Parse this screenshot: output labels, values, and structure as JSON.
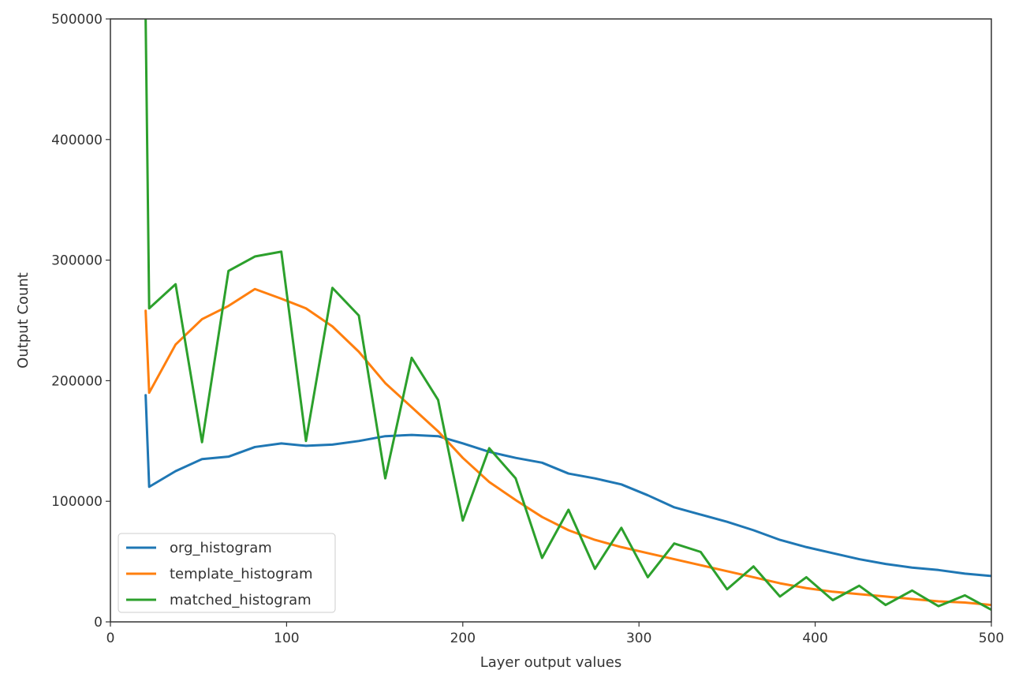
{
  "chart_data": {
    "type": "line",
    "title": "",
    "xlabel": "Layer output values",
    "ylabel": "Output Count",
    "xlim": [
      0,
      500
    ],
    "ylim": [
      0,
      500000
    ],
    "xticks": [
      0,
      100,
      200,
      300,
      400,
      500
    ],
    "yticks": [
      0,
      100000,
      200000,
      300000,
      400000,
      500000
    ],
    "grid": false,
    "legend_position": "lower-left",
    "series": [
      {
        "name": "org_histogram",
        "color": "#1f77b4",
        "points": [
          [
            20,
            188000
          ],
          [
            22,
            112000
          ],
          [
            37,
            125000
          ],
          [
            52,
            135000
          ],
          [
            67,
            137000
          ],
          [
            82,
            145000
          ],
          [
            97,
            148000
          ],
          [
            111,
            146000
          ],
          [
            126,
            147000
          ],
          [
            141,
            150000
          ],
          [
            156,
            154000
          ],
          [
            171,
            155000
          ],
          [
            186,
            154000
          ],
          [
            200,
            148000
          ],
          [
            215,
            141000
          ],
          [
            230,
            136000
          ],
          [
            245,
            132000
          ],
          [
            260,
            123000
          ],
          [
            275,
            119000
          ],
          [
            290,
            114000
          ],
          [
            305,
            105000
          ],
          [
            320,
            95000
          ],
          [
            335,
            89000
          ],
          [
            350,
            83000
          ],
          [
            365,
            76000
          ],
          [
            380,
            68000
          ],
          [
            395,
            62000
          ],
          [
            410,
            57000
          ],
          [
            425,
            52000
          ],
          [
            440,
            48000
          ],
          [
            455,
            45000
          ],
          [
            470,
            43000
          ],
          [
            485,
            40000
          ],
          [
            500,
            38000
          ]
        ]
      },
      {
        "name": "template_histogram",
        "color": "#ff7f0e",
        "points": [
          [
            20,
            258000
          ],
          [
            22,
            190000
          ],
          [
            37,
            230000
          ],
          [
            52,
            251000
          ],
          [
            67,
            262000
          ],
          [
            82,
            276000
          ],
          [
            97,
            268000
          ],
          [
            111,
            260000
          ],
          [
            126,
            245000
          ],
          [
            141,
            224000
          ],
          [
            156,
            198000
          ],
          [
            171,
            178000
          ],
          [
            186,
            158000
          ],
          [
            200,
            136000
          ],
          [
            215,
            116000
          ],
          [
            230,
            101000
          ],
          [
            245,
            87000
          ],
          [
            260,
            76000
          ],
          [
            275,
            68000
          ],
          [
            290,
            62000
          ],
          [
            305,
            57000
          ],
          [
            320,
            52000
          ],
          [
            335,
            47000
          ],
          [
            350,
            42000
          ],
          [
            365,
            37000
          ],
          [
            380,
            32000
          ],
          [
            395,
            28000
          ],
          [
            410,
            25000
          ],
          [
            425,
            23000
          ],
          [
            440,
            21000
          ],
          [
            455,
            19000
          ],
          [
            470,
            17000
          ],
          [
            485,
            16000
          ],
          [
            500,
            14000
          ]
        ]
      },
      {
        "name": "matched_histogram",
        "color": "#2ca02c",
        "points": [
          [
            20,
            500000
          ],
          [
            22,
            260000
          ],
          [
            37,
            280000
          ],
          [
            52,
            149000
          ],
          [
            67,
            291000
          ],
          [
            82,
            303000
          ],
          [
            97,
            307000
          ],
          [
            111,
            150000
          ],
          [
            126,
            277000
          ],
          [
            141,
            254000
          ],
          [
            156,
            119000
          ],
          [
            171,
            219000
          ],
          [
            186,
            184000
          ],
          [
            200,
            84000
          ],
          [
            215,
            144000
          ],
          [
            230,
            119000
          ],
          [
            245,
            53000
          ],
          [
            260,
            93000
          ],
          [
            275,
            44000
          ],
          [
            290,
            78000
          ],
          [
            305,
            37000
          ],
          [
            320,
            65000
          ],
          [
            335,
            58000
          ],
          [
            350,
            27000
          ],
          [
            365,
            46000
          ],
          [
            380,
            21000
          ],
          [
            395,
            37000
          ],
          [
            410,
            18000
          ],
          [
            425,
            30000
          ],
          [
            440,
            14000
          ],
          [
            455,
            26000
          ],
          [
            470,
            13000
          ],
          [
            485,
            22000
          ],
          [
            500,
            10000
          ]
        ]
      }
    ]
  }
}
